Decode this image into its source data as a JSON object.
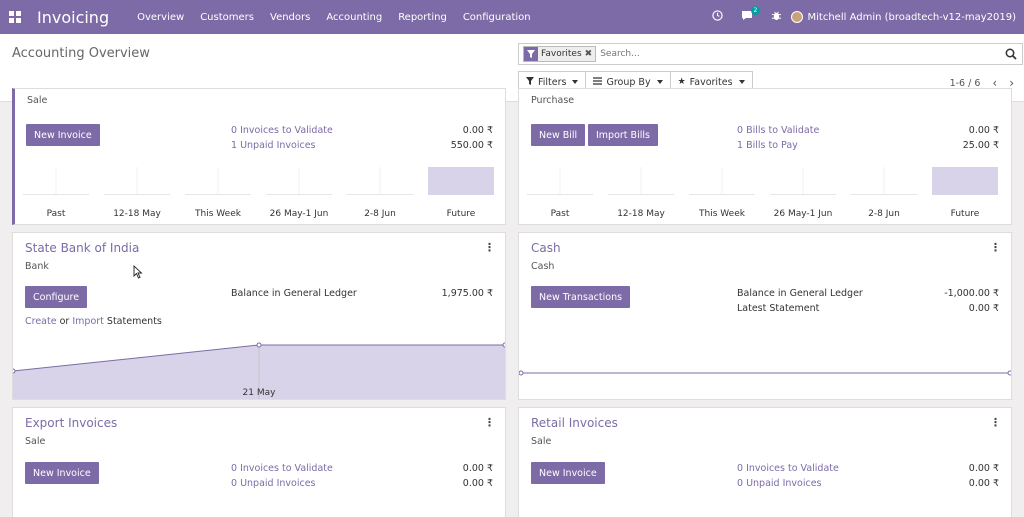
{
  "navbar": {
    "brand": "Invoicing",
    "menu": [
      "Overview",
      "Customers",
      "Vendors",
      "Accounting",
      "Reporting",
      "Configuration"
    ],
    "chat_count": "2",
    "user": "Mitchell Admin (broadtech-v12-may2019)",
    "icons": [
      "apps-icon",
      "clock-icon",
      "chat-icon",
      "bug-icon"
    ]
  },
  "control_panel": {
    "title": "Accounting Overview",
    "facet": "Favorites",
    "search_placeholder": "Search...",
    "filters_label": "Filters",
    "groupby_label": "Group By",
    "favorites_label": "Favorites",
    "pager": "1-6 / 6"
  },
  "cards": {
    "sale": {
      "type": "Sale",
      "button": "New Invoice",
      "link1": "0 Invoices to Validate",
      "amount1": "0.00 ₹",
      "link2": "1 Unpaid Invoices",
      "amount2": "550.00 ₹",
      "bar_labels": [
        "Past",
        "12-18 May",
        "This Week",
        "26 May-1 Jun",
        "2-8 Jun",
        "Future"
      ],
      "bar_values": [
        0,
        0,
        0,
        0,
        0,
        550
      ]
    },
    "purchase": {
      "type": "Purchase",
      "button1": "New Bill",
      "button2": "Import Bills",
      "link1": "0 Bills to Validate",
      "amount1": "0.00 ₹",
      "link2": "1 Bills to Pay",
      "amount2": "25.00 ₹",
      "bar_labels": [
        "Past",
        "12-18 May",
        "This Week",
        "26 May-1 Jun",
        "2-8 Jun",
        "Future"
      ],
      "bar_values": [
        0,
        0,
        0,
        0,
        0,
        25
      ]
    },
    "bank": {
      "name": "State Bank of India",
      "type": "Bank",
      "button": "Configure",
      "balance_label": "Balance in General Ledger",
      "balance": "1,975.00 ₹",
      "create": "Create",
      "or": "or",
      "import": "Import",
      "statements": "Statements",
      "graph_label": "21 May"
    },
    "cash": {
      "name": "Cash",
      "type": "Cash",
      "button": "New Transactions",
      "balance_label": "Balance in General Ledger",
      "balance": "-1,000.00 ₹",
      "statement_label": "Latest Statement",
      "statement": "0.00 ₹"
    },
    "export": {
      "name": "Export Invoices",
      "type": "Sale",
      "button": "New Invoice",
      "link1": "0 Invoices to Validate",
      "amount1": "0.00 ₹",
      "link2": "0 Unpaid Invoices",
      "amount2": "0.00 ₹"
    },
    "retail": {
      "name": "Retail Invoices",
      "type": "Sale",
      "button": "New Invoice",
      "link1": "0 Invoices to Validate",
      "amount1": "0.00 ₹",
      "link2": "0 Unpaid Invoices",
      "amount2": "0.00 ₹"
    }
  },
  "colors": {
    "primary": "#7c6ba6",
    "graph_fill": "#d8d3e8"
  }
}
